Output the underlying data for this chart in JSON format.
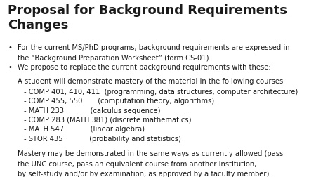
{
  "title": "Proposal for Background Requirements\nChanges",
  "title_fontsize": 13,
  "title_fontweight": "bold",
  "body_fontsize": 7.2,
  "background_color": "#ffffff",
  "text_color": "#1a1a1a",
  "bullet1_line1": "For the current MS/PhD programs, background requirements are expressed in",
  "bullet1_line2": "the “Background Preparation Worksheet” (form CS-01).",
  "bullet2": "We propose to replace the current background requirements with these:",
  "indent_text": "A student will demonstrate mastery of the material in the following courses",
  "course_lines": [
    "- COMP 401, 410, 411  (programming, data structures, computer architecture)",
    "- COMP 455, 550       (computation theory, algorithms)",
    "- MATH 233            (calculus sequence)",
    "- COMP 283 (MATH 381) (discrete mathematics)",
    "- MATH 547            (linear algebra)",
    "- STOR 435            (probability and statistics)"
  ],
  "mastery_lines": [
    "Mastery may be demonstrated in the same ways as currently allowed (pass",
    "the UNC course, pass an equivalent course from another institution,",
    "by self-study and/or by examination, as approved by a faculty member)."
  ]
}
